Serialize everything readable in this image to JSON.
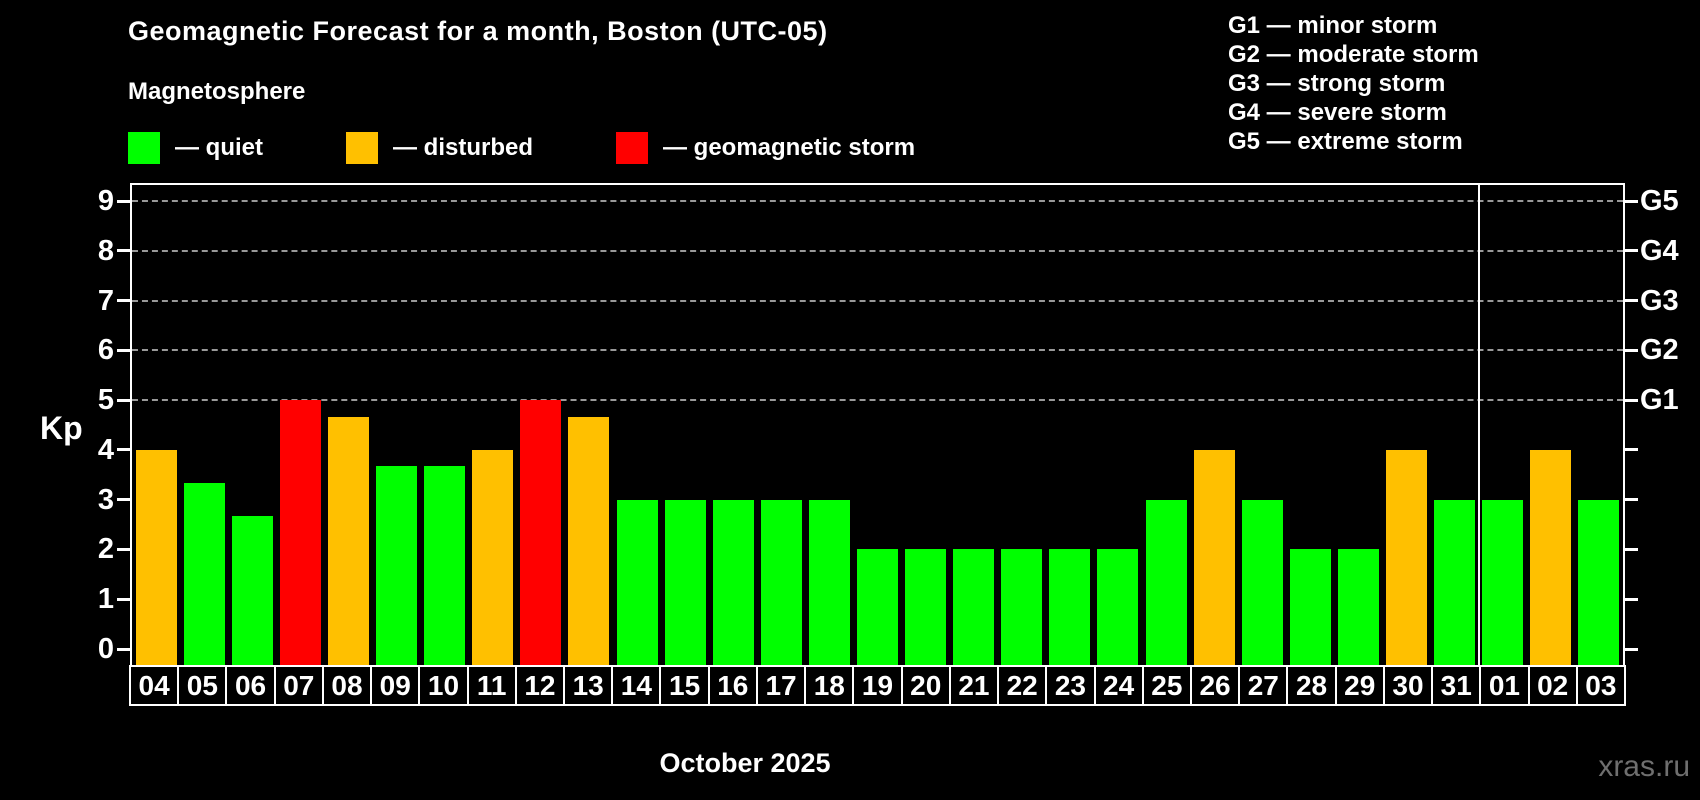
{
  "title": "Geomagnetic Forecast for a month, Boston (UTC-05)",
  "subtitle": "Magnetosphere",
  "watermark": "xras.ru",
  "colors": {
    "quiet": "#00ff00",
    "disturbed": "#ffc000",
    "storm": "#ff0000",
    "background": "#000000",
    "grid": "#999999",
    "axis": "#ffffff",
    "watermark": "#6f6f6f"
  },
  "legend": [
    {
      "key": "quiet",
      "label": "— quiet"
    },
    {
      "key": "disturbed",
      "label": "— disturbed"
    },
    {
      "key": "storm",
      "label": "— geomagnetic storm"
    }
  ],
  "g_legend": [
    "G1 — minor storm",
    "G2 — moderate storm",
    "G3 — strong storm",
    "G4 — severe storm",
    "G5 — extreme storm"
  ],
  "chart_data": {
    "type": "bar",
    "title": "Geomagnetic Forecast for a month, Boston (UTC-05)",
    "ylabel": "Kp",
    "xlabel_caption": "October 2025",
    "ylim": [
      0,
      9
    ],
    "yticks": [
      0,
      1,
      2,
      3,
      4,
      5,
      6,
      7,
      8,
      9
    ],
    "grid": "horizontal dashed lines at Kp 5,6,7,8,9",
    "legend_position": "top-left",
    "categories": [
      "04",
      "05",
      "06",
      "07",
      "08",
      "09",
      "10",
      "11",
      "12",
      "13",
      "14",
      "15",
      "16",
      "17",
      "18",
      "19",
      "20",
      "21",
      "22",
      "23",
      "24",
      "25",
      "26",
      "27",
      "28",
      "29",
      "30",
      "31",
      "01",
      "02",
      "03"
    ],
    "values": [
      4,
      3.33,
      2.67,
      5,
      4.67,
      3.67,
      3.67,
      4,
      5,
      4.67,
      3,
      3,
      3,
      3,
      3,
      2,
      2,
      2,
      2,
      2,
      2,
      3,
      4,
      3,
      2,
      2,
      4,
      3,
      3,
      4,
      3
    ],
    "statuses": [
      "disturbed",
      "quiet",
      "quiet",
      "storm",
      "disturbed",
      "quiet",
      "quiet",
      "disturbed",
      "storm",
      "disturbed",
      "quiet",
      "quiet",
      "quiet",
      "quiet",
      "quiet",
      "quiet",
      "quiet",
      "quiet",
      "quiet",
      "quiet",
      "quiet",
      "quiet",
      "disturbed",
      "quiet",
      "quiet",
      "quiet",
      "disturbed",
      "quiet",
      "quiet",
      "disturbed",
      "quiet"
    ],
    "right_axis": [
      {
        "value": 5,
        "label": "G1"
      },
      {
        "value": 6,
        "label": "G2"
      },
      {
        "value": 7,
        "label": "G3"
      },
      {
        "value": 8,
        "label": "G4"
      },
      {
        "value": 9,
        "label": "G5"
      }
    ],
    "month_separator_after": "31"
  }
}
